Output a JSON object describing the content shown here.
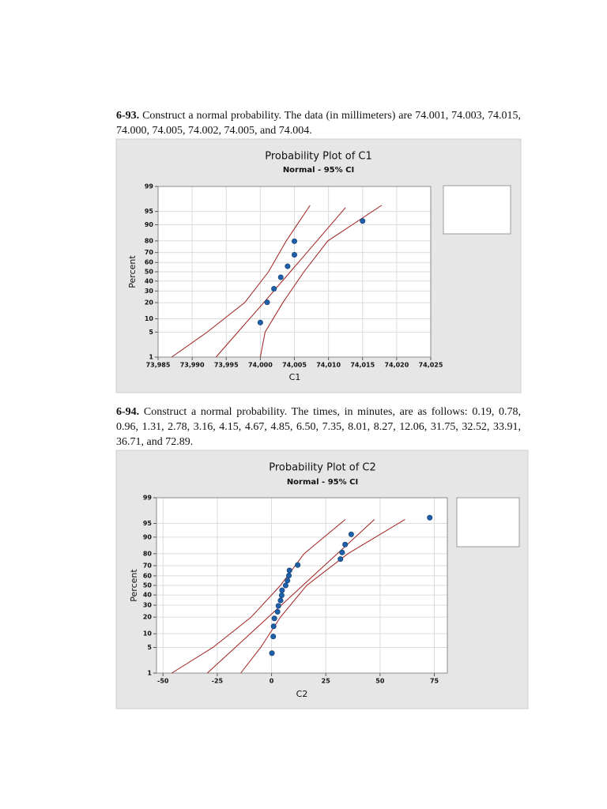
{
  "paragraphs": [
    {
      "number": "6-93.",
      "text": "Construct a normal probability. The data (in millimeters) are 74.001, 74.003, 74.015, 74.000, 74.005, 74.002, 74.005, and 74.004."
    },
    {
      "number": "6-94.",
      "text": "Construct a normal probability. The times, in minutes, are as follows: 0.19, 0.78, 0.96, 1.31, 2.78, 3.16, 4.15, 4.67, 4.85, 6.50, 7.35, 8.01, 8.27, 12.06, 31.75, 32.52, 33.91, 36.71, and 72.89."
    }
  ],
  "chart_data": [
    {
      "type": "probability",
      "title": "Probability Plot of C1",
      "subtitle": "Normal - 95% CI",
      "xlabel": "C1",
      "ylabel": "Percent",
      "xlim": [
        73.985,
        74.025
      ],
      "xticks": [
        {
          "value": 73.985,
          "label": "73,985"
        },
        {
          "value": 73.99,
          "label": "73,990"
        },
        {
          "value": 73.995,
          "label": "73,995"
        },
        {
          "value": 74.0,
          "label": "74,000"
        },
        {
          "value": 74.005,
          "label": "74,005"
        },
        {
          "value": 74.01,
          "label": "74,010"
        },
        {
          "value": 74.015,
          "label": "74,015"
        },
        {
          "value": 74.02,
          "label": "74,020"
        },
        {
          "value": 74.025,
          "label": "74,025"
        }
      ],
      "ylim": [
        1,
        99
      ],
      "yticks": [
        1,
        5,
        10,
        20,
        30,
        40,
        50,
        60,
        70,
        80,
        90,
        95,
        99
      ],
      "yscale": "probability",
      "grid": true,
      "points": {
        "color": "#1f5fa8",
        "x": [
          74.0,
          74.001,
          74.002,
          74.003,
          74.004,
          74.005,
          74.005,
          74.015
        ],
        "values": [
          8.33,
          20.24,
          32.14,
          44.05,
          55.95,
          67.86,
          79.76,
          91.67
        ]
      },
      "lines": [
        {
          "color": "#a02020",
          "x": [
            73.9935,
            73.9967,
            74.0005,
            74.0044,
            74.0083,
            74.0125
          ],
          "values": [
            1,
            5,
            20,
            50,
            80,
            96
          ]
        },
        {
          "color": "#a02020",
          "x": [
            73.987,
            73.9922,
            73.9977,
            74.0012,
            74.0038,
            74.0073
          ],
          "values": [
            1,
            5,
            20,
            50,
            80,
            96.5
          ]
        },
        {
          "color": "#a02020",
          "x": [
            74.0,
            74.0007,
            74.0033,
            74.0064,
            74.0099,
            74.0178
          ],
          "values": [
            1,
            5,
            20,
            50,
            80,
            96.5
          ]
        }
      ]
    },
    {
      "type": "probability",
      "title": "Probability Plot of C2",
      "subtitle": "Normal - 95% CI",
      "xlabel": "C2",
      "ylabel": "Percent",
      "xlim": [
        -53,
        81
      ],
      "xticks": [
        -50,
        -25,
        0,
        25,
        50,
        75
      ],
      "ylim": [
        1,
        99
      ],
      "yticks": [
        1,
        5,
        10,
        20,
        30,
        40,
        50,
        60,
        70,
        80,
        90,
        95,
        99
      ],
      "yscale": "probability",
      "grid": true,
      "points": {
        "color": "#1f5fa8",
        "x": [
          0.19,
          0.78,
          0.96,
          1.31,
          2.78,
          3.16,
          4.15,
          4.67,
          4.85,
          6.5,
          7.35,
          8.01,
          8.27,
          12.06,
          31.75,
          32.52,
          33.91,
          36.71,
          72.89
        ],
        "values": [
          3.61,
          8.76,
          13.92,
          19.07,
          24.23,
          29.38,
          34.54,
          39.69,
          44.85,
          50,
          55.15,
          60.31,
          65.46,
          70.62,
          75.77,
          80.93,
          86.08,
          91.24,
          96.39
        ]
      },
      "lines": [
        {
          "color": "#a02020",
          "x": [
            -29.6,
            -16.7,
            -1.5,
            14.4,
            30.3,
            47.4
          ],
          "values": [
            1,
            5,
            20,
            50,
            80,
            96
          ]
        },
        {
          "color": "#a02020",
          "x": [
            -46,
            -27,
            -9.4,
            4.1,
            15,
            34
          ],
          "values": [
            1,
            5,
            20,
            50,
            80,
            96
          ]
        },
        {
          "color": "#a02020",
          "x": [
            -14.2,
            -5,
            4.1,
            16.2,
            35.2,
            61.5
          ],
          "values": [
            1,
            5,
            20,
            50,
            80,
            96
          ]
        }
      ]
    }
  ]
}
